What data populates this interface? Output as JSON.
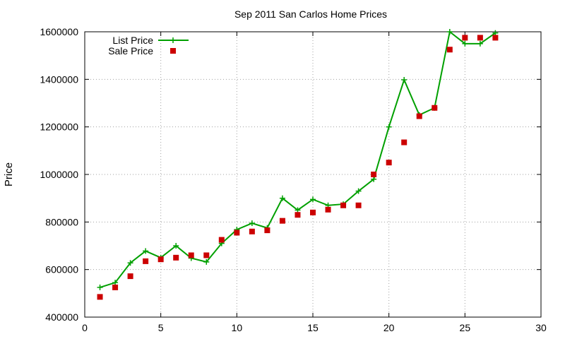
{
  "chart_data": {
    "type": "line",
    "title": "Sep 2011 San Carlos Home Prices",
    "xlabel": "",
    "ylabel": "Price",
    "xlim": [
      0,
      30
    ],
    "ylim": [
      400000,
      1600000
    ],
    "x_ticks": [
      0,
      5,
      10,
      15,
      20,
      25,
      30
    ],
    "y_ticks": [
      400000,
      600000,
      800000,
      1000000,
      1200000,
      1400000,
      1600000
    ],
    "grid": true,
    "legend_position": "top-left",
    "series": [
      {
        "name": "List Price",
        "style": "line-points",
        "color": "#00a000",
        "marker": "plus",
        "x": [
          1,
          2,
          3,
          4,
          5,
          6,
          7,
          8,
          9,
          10,
          11,
          12,
          13,
          14,
          15,
          16,
          17,
          18,
          19,
          20,
          21,
          22,
          23,
          24,
          25,
          26,
          27
        ],
        "y": [
          525000,
          545000,
          628000,
          678000,
          650000,
          700000,
          648000,
          632000,
          710000,
          768000,
          795000,
          775000,
          900000,
          850000,
          895000,
          870000,
          875000,
          930000,
          980000,
          1200000,
          1398000,
          1250000,
          1280000,
          1600000,
          1550000,
          1550000,
          1595000
        ]
      },
      {
        "name": "Sale Price",
        "style": "points",
        "color": "#cc0000",
        "marker": "square",
        "x": [
          1,
          2,
          3,
          4,
          5,
          6,
          7,
          8,
          9,
          10,
          11,
          12,
          13,
          14,
          15,
          16,
          17,
          18,
          19,
          20,
          21,
          22,
          23,
          24,
          25,
          26,
          27
        ],
        "y": [
          485000,
          525000,
          572000,
          635000,
          643000,
          650000,
          660000,
          660000,
          725000,
          755000,
          760000,
          765000,
          805000,
          830000,
          840000,
          852000,
          870000,
          870000,
          1000000,
          1050000,
          1135000,
          1245000,
          1280000,
          1525000,
          1575000,
          1575000,
          1575000
        ]
      }
    ]
  }
}
